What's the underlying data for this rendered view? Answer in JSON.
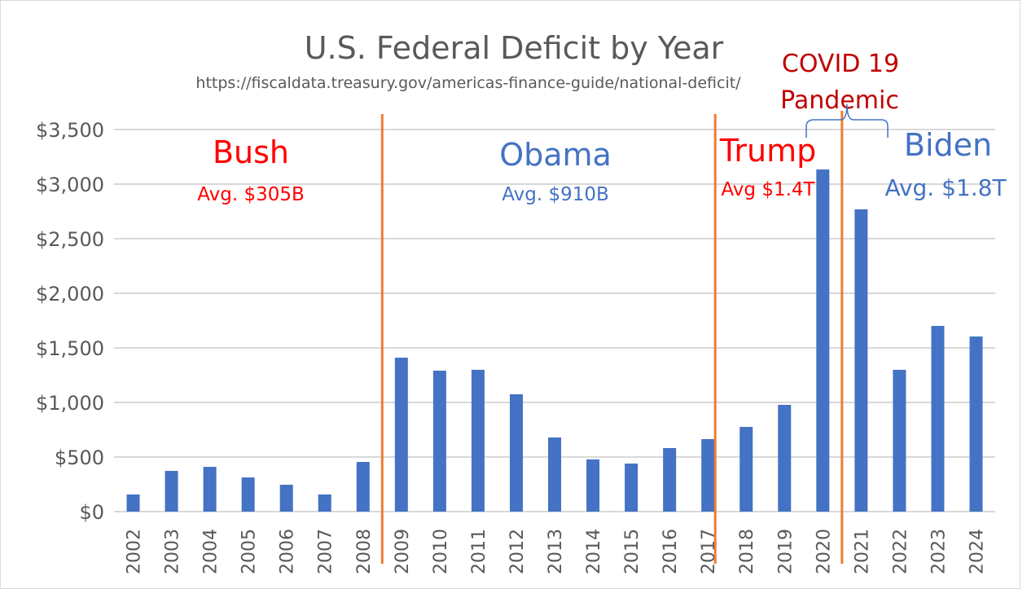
{
  "chart_data": {
    "type": "bar",
    "title": "U.S. Federal Deficit by Year",
    "subtitle": "https://fiscaldata.treasury.gov/americas-finance-guide/national-deficit/",
    "categories": [
      "2002",
      "2003",
      "2004",
      "2005",
      "2006",
      "2007",
      "2008",
      "2009",
      "2010",
      "2011",
      "2012",
      "2013",
      "2014",
      "2015",
      "2016",
      "2017",
      "2018",
      "2019",
      "2020",
      "2021",
      "2022",
      "2023",
      "2024"
    ],
    "values": [
      157,
      373,
      410,
      313,
      246,
      157,
      455,
      1410,
      1291,
      1299,
      1075,
      679,
      478,
      440,
      582,
      664,
      776,
      978,
      3134,
      2769,
      1299,
      1701,
      1604
    ],
    "ylim": [
      0,
      3500
    ],
    "yticks": [
      0,
      500,
      1000,
      1500,
      2000,
      2500,
      3000,
      3500
    ],
    "ytick_labels": [
      "$0",
      "$500",
      "$1,000",
      "$1,500",
      "$2,000",
      "$2,500",
      "$3,000",
      "$3,500"
    ],
    "grid": true,
    "bar_color": "#4472C4",
    "divider_color": "#ED7D31",
    "annotations": [
      {
        "name": "Bush",
        "avg": "Avg. $305B",
        "color": "#FF0000"
      },
      {
        "name": "Obama",
        "avg": "Avg. $910B",
        "color": "#4472C4"
      },
      {
        "name": "Trump",
        "avg": "Avg $1.4T",
        "color": "#FF0000"
      },
      {
        "name": "Biden",
        "avg": "Avg. $1.8T",
        "color": "#4472C4"
      }
    ],
    "covid_label": [
      "COVID 19",
      "Pandemic"
    ],
    "covid_color": "#C00000"
  }
}
